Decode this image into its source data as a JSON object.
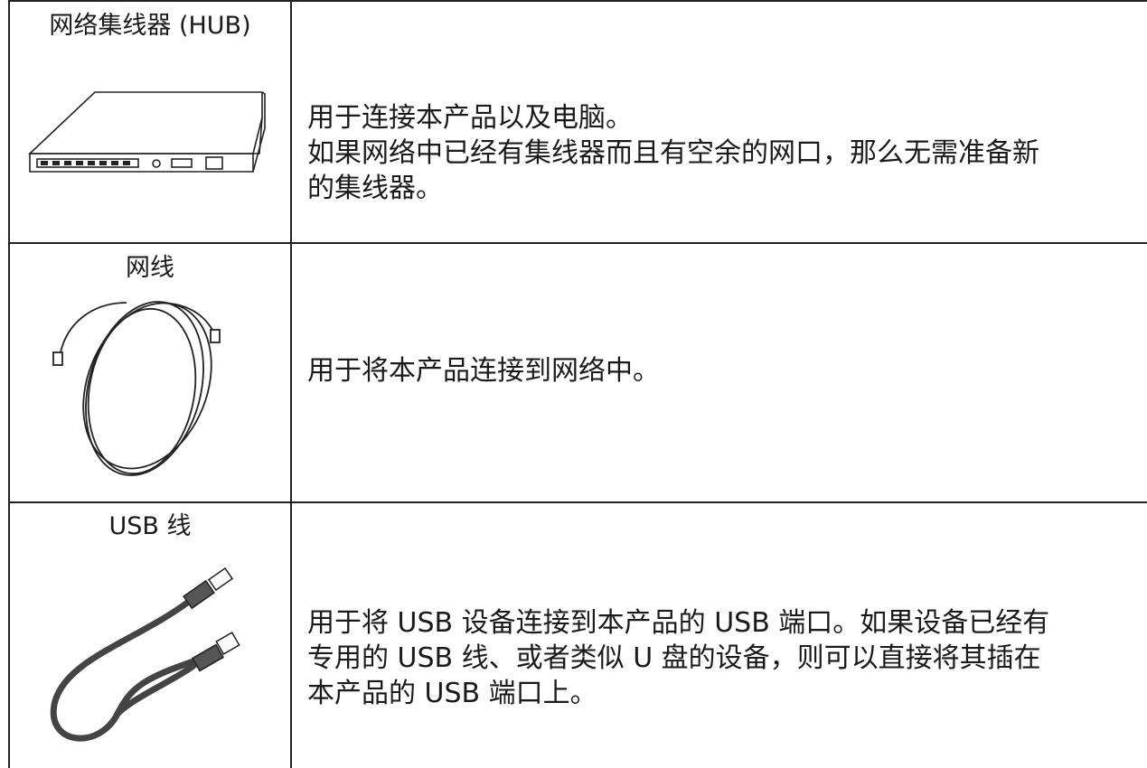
{
  "table": {
    "rows": [
      {
        "item": "网络集线器 (HUB)",
        "description": [
          "用于连接本产品以及电脑。",
          "如果网络中已经有集线器而且有空余的网口，那么无需准备新",
          "的集线器。"
        ]
      },
      {
        "item": "网线",
        "description": [
          "用于将本产品连接到网络中。"
        ]
      },
      {
        "item": "USB 线",
        "description": [
          "用于将 USB 设备连接到本产品的 USB 端口。如果设备已经有",
          "专用的 USB 线、或者类似 U 盘的设备，则可以直接将其插在",
          "本产品的 USB 端口上。"
        ]
      }
    ]
  }
}
